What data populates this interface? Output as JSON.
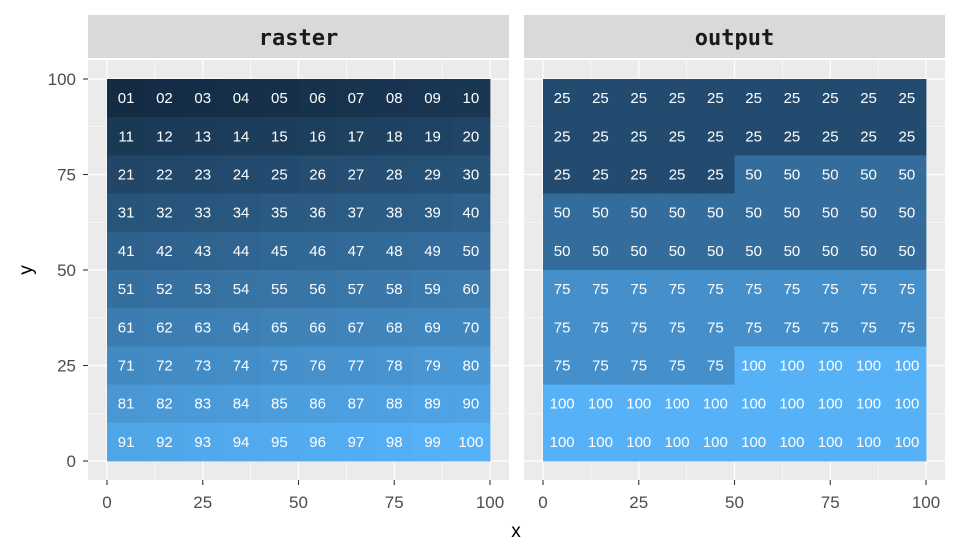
{
  "chart_data": {
    "type": "heatmap",
    "xlabel": "x",
    "ylabel": "y",
    "xlim": [
      0,
      100
    ],
    "ylim": [
      0,
      100
    ],
    "x_ticks": [
      0,
      25,
      50,
      75,
      100
    ],
    "y_ticks": [
      0,
      25,
      50,
      75,
      100
    ],
    "grid": true,
    "color_low": "#132B43",
    "color_high": "#56B1F7",
    "panel_background": "#EBEBEB",
    "strip_background": "#D9D9D9",
    "panels": [
      {
        "title": "raster",
        "value_range": [
          1,
          100
        ],
        "rows": [
          [
            "01",
            "02",
            "03",
            "04",
            "05",
            "06",
            "07",
            "08",
            "09",
            "10"
          ],
          [
            "11",
            "12",
            "13",
            "14",
            "15",
            "16",
            "17",
            "18",
            "19",
            "20"
          ],
          [
            "21",
            "22",
            "23",
            "24",
            "25",
            "26",
            "27",
            "28",
            "29",
            "30"
          ],
          [
            "31",
            "32",
            "33",
            "34",
            "35",
            "36",
            "37",
            "38",
            "39",
            "40"
          ],
          [
            "41",
            "42",
            "43",
            "44",
            "45",
            "46",
            "47",
            "48",
            "49",
            "50"
          ],
          [
            "51",
            "52",
            "53",
            "54",
            "55",
            "56",
            "57",
            "58",
            "59",
            "60"
          ],
          [
            "61",
            "62",
            "63",
            "64",
            "65",
            "66",
            "67",
            "68",
            "69",
            "70"
          ],
          [
            "71",
            "72",
            "73",
            "74",
            "75",
            "76",
            "77",
            "78",
            "79",
            "80"
          ],
          [
            "81",
            "82",
            "83",
            "84",
            "85",
            "86",
            "87",
            "88",
            "89",
            "90"
          ],
          [
            "91",
            "92",
            "93",
            "94",
            "95",
            "96",
            "97",
            "98",
            "99",
            "100"
          ]
        ]
      },
      {
        "title": "output",
        "value_range": [
          1,
          100
        ],
        "rows": [
          [
            "25",
            "25",
            "25",
            "25",
            "25",
            "25",
            "25",
            "25",
            "25",
            "25"
          ],
          [
            "25",
            "25",
            "25",
            "25",
            "25",
            "25",
            "25",
            "25",
            "25",
            "25"
          ],
          [
            "25",
            "25",
            "25",
            "25",
            "25",
            "50",
            "50",
            "50",
            "50",
            "50"
          ],
          [
            "50",
            "50",
            "50",
            "50",
            "50",
            "50",
            "50",
            "50",
            "50",
            "50"
          ],
          [
            "50",
            "50",
            "50",
            "50",
            "50",
            "50",
            "50",
            "50",
            "50",
            "50"
          ],
          [
            "75",
            "75",
            "75",
            "75",
            "75",
            "75",
            "75",
            "75",
            "75",
            "75"
          ],
          [
            "75",
            "75",
            "75",
            "75",
            "75",
            "75",
            "75",
            "75",
            "75",
            "75"
          ],
          [
            "75",
            "75",
            "75",
            "75",
            "75",
            "100",
            "100",
            "100",
            "100",
            "100"
          ],
          [
            "100",
            "100",
            "100",
            "100",
            "100",
            "100",
            "100",
            "100",
            "100",
            "100"
          ],
          [
            "100",
            "100",
            "100",
            "100",
            "100",
            "100",
            "100",
            "100",
            "100",
            "100"
          ]
        ]
      }
    ]
  }
}
